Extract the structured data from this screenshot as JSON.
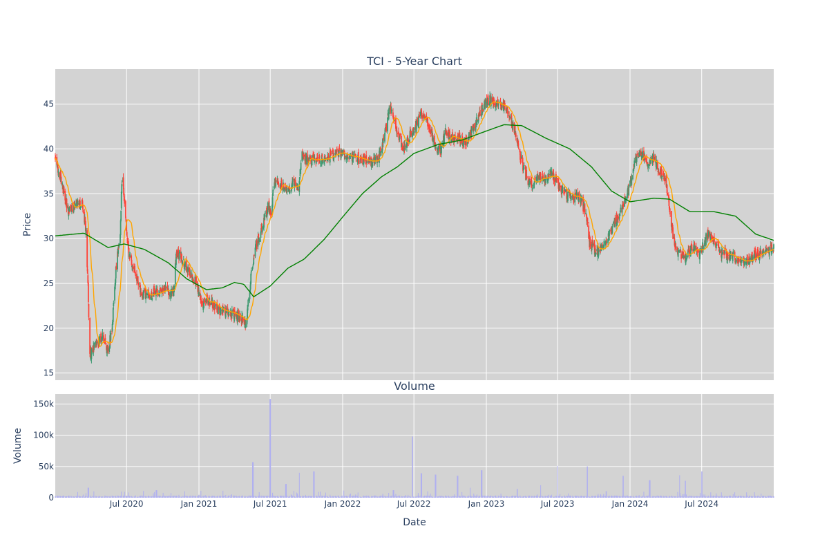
{
  "chart_data": {
    "type": "candlestick",
    "title": "TCI - 5-Year Chart",
    "colors": {
      "plot_bg": "#d3d3d3",
      "grid": "#ffffff",
      "increasing": "#3d9970",
      "decreasing": "#ff4136",
      "ma_short": "#ffa500",
      "ma_long": "#008000",
      "volume": "#b0b0f0",
      "text": "#2a3f5f"
    },
    "price_panel": {
      "ylabel": "Price",
      "ylim": [
        14.2,
        48.9
      ],
      "yticks": [
        15,
        20,
        25,
        30,
        35,
        40,
        45
      ],
      "ytick_labels": [
        "15",
        "20",
        "25",
        "30",
        "35",
        "40",
        "45"
      ],
      "grid": true
    },
    "volume_panel": {
      "title": "Volume",
      "ylabel": "Volume",
      "ylim": [
        0,
        166000
      ],
      "yticks": [
        0,
        50000,
        100000,
        150000
      ],
      "ytick_labels": [
        "0",
        "50k",
        "100k",
        "150k"
      ],
      "grid": true
    },
    "x_axis": {
      "xlabel": "Date",
      "range": [
        "2020-01-02",
        "2024-12-31"
      ],
      "ticks": [
        "2020-07-01",
        "2021-01-01",
        "2021-07-01",
        "2022-01-01",
        "2022-07-01",
        "2023-01-01",
        "2023-07-01",
        "2024-01-01",
        "2024-07-01"
      ],
      "tick_labels": [
        "Jul 2020",
        "Jan 2021",
        "Jul 2021",
        "Jan 2022",
        "Jul 2022",
        "Jan 2023",
        "Jul 2023",
        "Jan 2024",
        "Jul 2024"
      ]
    },
    "close_anchors": [
      [
        "2020-01-02",
        39.0
      ],
      [
        "2020-01-15",
        36.8
      ],
      [
        "2020-02-05",
        33.0
      ],
      [
        "2020-02-20",
        33.6
      ],
      [
        "2020-03-10",
        34.0
      ],
      [
        "2020-03-20",
        31.0
      ],
      [
        "2020-03-25",
        24.5
      ],
      [
        "2020-03-30",
        17.0
      ],
      [
        "2020-04-15",
        18.2
      ],
      [
        "2020-05-01",
        19.0
      ],
      [
        "2020-05-15",
        17.5
      ],
      [
        "2020-05-25",
        20.0
      ],
      [
        "2020-06-05",
        27.0
      ],
      [
        "2020-06-15",
        30.5
      ],
      [
        "2020-06-20",
        38.0
      ],
      [
        "2020-06-28",
        32.5
      ],
      [
        "2020-07-05",
        28.5
      ],
      [
        "2020-07-20",
        26.8
      ],
      [
        "2020-08-05",
        24.0
      ],
      [
        "2020-08-20",
        23.5
      ],
      [
        "2020-09-10",
        24.0
      ],
      [
        "2020-10-10",
        24.3
      ],
      [
        "2020-10-28",
        24.0
      ],
      [
        "2020-11-05",
        28.5
      ],
      [
        "2020-11-20",
        27.5
      ],
      [
        "2020-12-10",
        26.0
      ],
      [
        "2020-12-25",
        25.0
      ],
      [
        "2021-01-10",
        22.5
      ],
      [
        "2021-01-25",
        23.3
      ],
      [
        "2021-02-15",
        22.0
      ],
      [
        "2021-03-10",
        21.8
      ],
      [
        "2021-04-01",
        21.5
      ],
      [
        "2021-04-20",
        21.0
      ],
      [
        "2021-05-01",
        20.5
      ],
      [
        "2021-05-15",
        26.5
      ],
      [
        "2021-05-25",
        29.0
      ],
      [
        "2021-06-10",
        31.0
      ],
      [
        "2021-06-25",
        33.5
      ],
      [
        "2021-07-05",
        33.0
      ],
      [
        "2021-07-10",
        36.5
      ],
      [
        "2021-07-25",
        36.0
      ],
      [
        "2021-08-15",
        35.5
      ],
      [
        "2021-09-01",
        36.5
      ],
      [
        "2021-09-10",
        35.0
      ],
      [
        "2021-09-20",
        39.5
      ],
      [
        "2021-10-05",
        38.5
      ],
      [
        "2021-10-20",
        39.0
      ],
      [
        "2021-11-10",
        38.8
      ],
      [
        "2021-12-01",
        39.2
      ],
      [
        "2021-12-25",
        39.5
      ],
      [
        "2022-01-20",
        39.2
      ],
      [
        "2022-02-15",
        38.8
      ],
      [
        "2022-03-15",
        38.6
      ],
      [
        "2022-04-01",
        38.8
      ],
      [
        "2022-04-20",
        42.0
      ],
      [
        "2022-05-01",
        45.0
      ],
      [
        "2022-05-20",
        42.0
      ],
      [
        "2022-06-05",
        40.0
      ],
      [
        "2022-06-20",
        41.5
      ],
      [
        "2022-07-05",
        42.5
      ],
      [
        "2022-07-20",
        44.0
      ],
      [
        "2022-08-05",
        43.0
      ],
      [
        "2022-08-20",
        41.0
      ],
      [
        "2022-09-05",
        39.5
      ],
      [
        "2022-09-20",
        42.0
      ],
      [
        "2022-10-05",
        41.0
      ],
      [
        "2022-10-20",
        41.5
      ],
      [
        "2022-11-05",
        40.5
      ],
      [
        "2022-11-20",
        41.5
      ],
      [
        "2022-12-05",
        43.0
      ],
      [
        "2022-12-20",
        44.5
      ],
      [
        "2023-01-10",
        45.5
      ],
      [
        "2023-01-25",
        44.8
      ],
      [
        "2023-02-10",
        45.0
      ],
      [
        "2023-02-25",
        44.0
      ],
      [
        "2023-03-15",
        42.0
      ],
      [
        "2023-04-01",
        38.5
      ],
      [
        "2023-04-15",
        36.5
      ],
      [
        "2023-05-01",
        36.0
      ],
      [
        "2023-05-15",
        37.0
      ],
      [
        "2023-06-01",
        36.5
      ],
      [
        "2023-06-15",
        37.5
      ],
      [
        "2023-07-01",
        36.0
      ],
      [
        "2023-07-20",
        35.0
      ],
      [
        "2023-08-10",
        34.5
      ],
      [
        "2023-08-25",
        34.5
      ],
      [
        "2023-09-10",
        33.0
      ],
      [
        "2023-09-20",
        29.5
      ],
      [
        "2023-10-05",
        28.5
      ],
      [
        "2023-10-20",
        29.0
      ],
      [
        "2023-11-05",
        30.0
      ],
      [
        "2023-11-20",
        31.5
      ],
      [
        "2023-12-05",
        32.5
      ],
      [
        "2023-12-20",
        34.5
      ],
      [
        "2024-01-01",
        36.0
      ],
      [
        "2024-01-15",
        39.0
      ],
      [
        "2024-02-01",
        39.5
      ],
      [
        "2024-02-15",
        38.5
      ],
      [
        "2024-03-01",
        39.0
      ],
      [
        "2024-03-15",
        37.5
      ],
      [
        "2024-04-01",
        36.5
      ],
      [
        "2024-04-20",
        30.0
      ],
      [
        "2024-05-01",
        28.5
      ],
      [
        "2024-05-20",
        28.0
      ],
      [
        "2024-06-10",
        29.0
      ],
      [
        "2024-06-25",
        28.3
      ],
      [
        "2024-07-15",
        30.5
      ],
      [
        "2024-08-01",
        29.5
      ],
      [
        "2024-08-20",
        28.5
      ],
      [
        "2024-09-10",
        28.0
      ],
      [
        "2024-10-01",
        27.8
      ],
      [
        "2024-10-20",
        27.5
      ],
      [
        "2024-11-10",
        28.0
      ],
      [
        "2024-12-01",
        28.5
      ],
      [
        "2024-12-31",
        29.0
      ]
    ],
    "sma200_anchors": [
      [
        "2020-01-02",
        30.3
      ],
      [
        "2020-03-15",
        30.6
      ],
      [
        "2020-05-15",
        29.0
      ],
      [
        "2020-06-25",
        29.4
      ],
      [
        "2020-08-15",
        28.8
      ],
      [
        "2020-10-15",
        27.3
      ],
      [
        "2020-12-01",
        25.5
      ],
      [
        "2021-01-20",
        24.3
      ],
      [
        "2021-03-01",
        24.5
      ],
      [
        "2021-04-01",
        25.1
      ],
      [
        "2021-04-25",
        24.9
      ],
      [
        "2021-05-20",
        23.5
      ],
      [
        "2021-07-01",
        24.7
      ],
      [
        "2021-08-15",
        26.7
      ],
      [
        "2021-09-25",
        27.7
      ],
      [
        "2021-11-15",
        29.9
      ],
      [
        "2022-01-01",
        32.4
      ],
      [
        "2022-02-20",
        35.0
      ],
      [
        "2022-04-10",
        36.9
      ],
      [
        "2022-05-20",
        38.0
      ],
      [
        "2022-07-01",
        39.5
      ],
      [
        "2022-09-01",
        40.5
      ],
      [
        "2022-11-01",
        41.0
      ],
      [
        "2023-01-01",
        42.0
      ],
      [
        "2023-02-15",
        42.7
      ],
      [
        "2023-04-01",
        42.6
      ],
      [
        "2023-06-01",
        41.2
      ],
      [
        "2023-08-01",
        40.0
      ],
      [
        "2023-09-25",
        38.0
      ],
      [
        "2023-11-15",
        35.3
      ],
      [
        "2024-01-01",
        34.1
      ],
      [
        "2024-03-01",
        34.5
      ],
      [
        "2024-04-10",
        34.4
      ],
      [
        "2024-06-01",
        33.0
      ],
      [
        "2024-08-01",
        33.0
      ],
      [
        "2024-09-25",
        32.5
      ],
      [
        "2024-11-15",
        30.5
      ],
      [
        "2024-12-31",
        29.8
      ]
    ],
    "volume_spikes": [
      [
        "2020-03-26",
        16000
      ],
      [
        "2020-09-15",
        12000
      ],
      [
        "2021-05-18",
        57000
      ],
      [
        "2021-07-01",
        158000
      ],
      [
        "2021-08-10",
        22000
      ],
      [
        "2021-09-12",
        40000
      ],
      [
        "2021-10-20",
        42000
      ],
      [
        "2022-05-10",
        12000
      ],
      [
        "2022-06-27",
        98000
      ],
      [
        "2022-07-20",
        39000
      ],
      [
        "2022-08-25",
        37000
      ],
      [
        "2022-10-20",
        35000
      ],
      [
        "2022-11-20",
        16000
      ],
      [
        "2022-12-20",
        44000
      ],
      [
        "2023-03-20",
        14000
      ],
      [
        "2023-05-20",
        20000
      ],
      [
        "2023-07-01",
        51000
      ],
      [
        "2023-09-15",
        50000
      ],
      [
        "2023-12-15",
        35000
      ],
      [
        "2024-02-20",
        28000
      ],
      [
        "2024-05-05",
        36000
      ],
      [
        "2024-05-20",
        27000
      ],
      [
        "2024-07-01",
        42000
      ]
    ],
    "volume_baseline": 2500,
    "candle_noise": 0.55
  }
}
